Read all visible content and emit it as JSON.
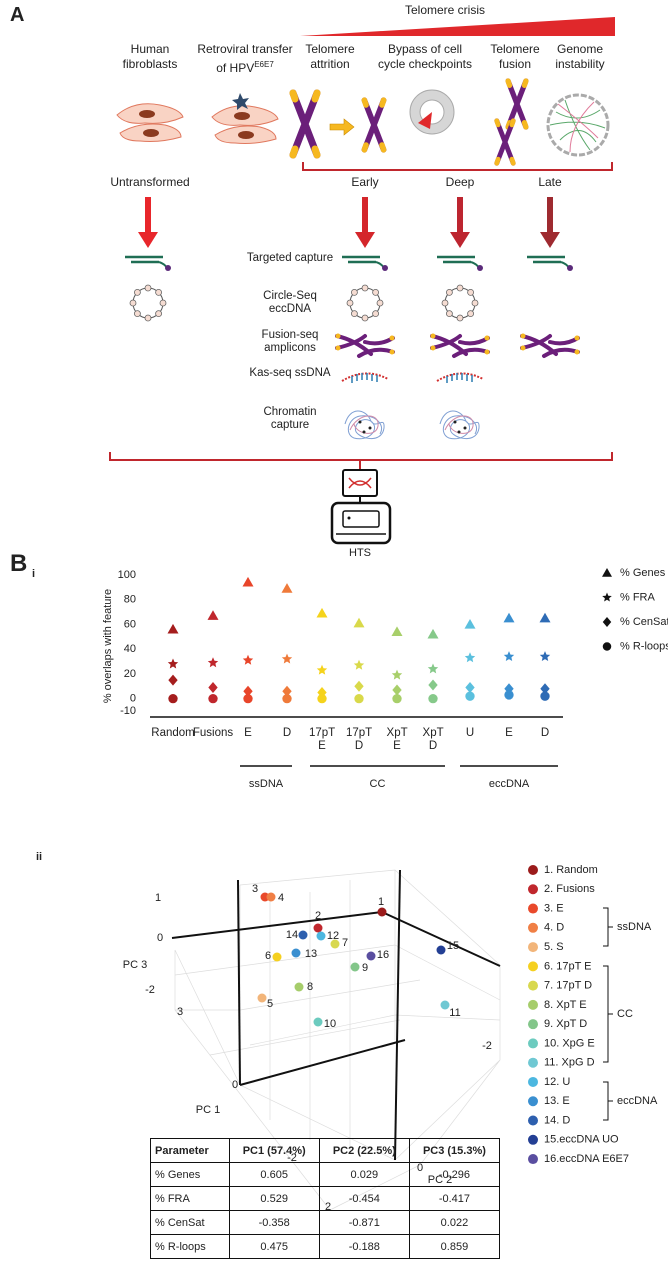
{
  "figure": {
    "panel_a": "A",
    "panel_b": "B",
    "sub_i": "i",
    "sub_ii": "ii"
  },
  "schematic": {
    "crisis": "Telomere crisis",
    "steps": [
      "Human fibroblasts",
      "Retroviral transfer of HPV",
      "Telomere attrition",
      "Bypass of cell cycle checkpoints",
      "Telomere fusion",
      "Genome instability"
    ],
    "hpv_superscript": "E6E7",
    "stages": [
      "Untransformed",
      "Early",
      "Deep",
      "Late"
    ],
    "assays": [
      "Targeted capture",
      "Circle-Seq eccDNA",
      "Fusion-seq amplicons",
      "Kas-seq ssDNA",
      "Chromatin capture"
    ],
    "instrument": "HTS"
  },
  "chart_data": {
    "type": "scatter",
    "categories": [
      "Random",
      "Fusions",
      "E",
      "D",
      "17pT E",
      "17pT D",
      "XpT E",
      "XpT D",
      "U",
      "E",
      "D"
    ],
    "category_colors": [
      "#a51d1d",
      "#c0272d",
      "#e8452a",
      "#ef7a3a",
      "#f5d31c",
      "#d9d94a",
      "#a8cf6a",
      "#86c98a",
      "#5bc0de",
      "#3a8fd0",
      "#2e6bb5"
    ],
    "groups": [
      "ssDNA",
      "CC",
      "eccDNA"
    ],
    "ylabel": "% overlaps with feature",
    "ylim": [
      -10,
      100
    ],
    "yticks": [
      -10,
      0,
      20,
      40,
      60,
      80,
      100
    ],
    "legend": "right",
    "series": [
      {
        "name": "% Genes",
        "marker": "triangle",
        "color": "#111111",
        "values": [
          56,
          67,
          94,
          89,
          69,
          61,
          54,
          52,
          60,
          65,
          65
        ]
      },
      {
        "name": "% FRA",
        "marker": "star",
        "color": "#111111",
        "values": [
          28,
          29,
          31,
          32,
          23,
          27,
          19,
          24,
          33,
          34,
          34
        ]
      },
      {
        "name": "% CenSat",
        "marker": "diamond",
        "color": "#111111",
        "values": [
          15,
          9,
          6,
          6,
          5,
          10,
          7,
          11,
          9,
          8,
          8
        ]
      },
      {
        "name": "% R-loops",
        "marker": "circle",
        "color": "#111111",
        "values": [
          0,
          0,
          0,
          0,
          0,
          0,
          0,
          0,
          2,
          3,
          2
        ]
      }
    ]
  },
  "pca": {
    "axis_labels": [
      "PC 1",
      "PC 2",
      "PC 3"
    ],
    "pc1_ticks": [
      3,
      0,
      -2,
      2
    ],
    "pc2_ticks": [
      0,
      -2
    ],
    "pc3_ticks": [
      1,
      0,
      -2
    ],
    "points": [
      "1",
      "2",
      "3",
      "4",
      "5",
      "6",
      "7",
      "8",
      "9",
      "10",
      "11",
      "12",
      "13",
      "14",
      "15",
      "16"
    ],
    "legend": [
      {
        "label": "1. Random",
        "color": "#9b1b1b"
      },
      {
        "label": "2. Fusions",
        "color": "#c0272d"
      },
      {
        "label": "3. E",
        "color": "#e9492b"
      },
      {
        "label": "4. D",
        "color": "#f07f45"
      },
      {
        "label": "5. S",
        "color": "#f2b57a"
      },
      {
        "label": "6. 17pT E",
        "color": "#f5d020"
      },
      {
        "label": "7. 17pT D",
        "color": "#d8d84f"
      },
      {
        "label": "8. XpT E",
        "color": "#a6cd6b"
      },
      {
        "label": "9. XpT D",
        "color": "#83c68a"
      },
      {
        "label": "10. XpG E",
        "color": "#6ccbbf"
      },
      {
        "label": "11. XpG D",
        "color": "#6fc8d3"
      },
      {
        "label": "12. U",
        "color": "#4cb7e0"
      },
      {
        "label": "13. E",
        "color": "#3a8fd0"
      },
      {
        "label": "14. D",
        "color": "#2d5fae"
      },
      {
        "label": "15.eccDNA UO",
        "color": "#233f94"
      },
      {
        "label": "16.eccDNA E6E7",
        "color": "#5a4ea0"
      }
    ],
    "groups": [
      "ssDNA",
      "CC",
      "eccDNA"
    ]
  },
  "table": {
    "header": [
      "Parameter",
      "PC1 (57.4%)",
      "PC2 (22.5%)",
      "PC3 (15.3%)"
    ],
    "rows": [
      [
        "% Genes",
        0.605,
        0.029,
        -0.296
      ],
      [
        "% FRA",
        0.529,
        -0.454,
        -0.417
      ],
      [
        "% CenSat",
        -0.358,
        -0.871,
        0.022
      ],
      [
        "% R-loops",
        0.475,
        -0.188,
        0.859
      ]
    ]
  }
}
